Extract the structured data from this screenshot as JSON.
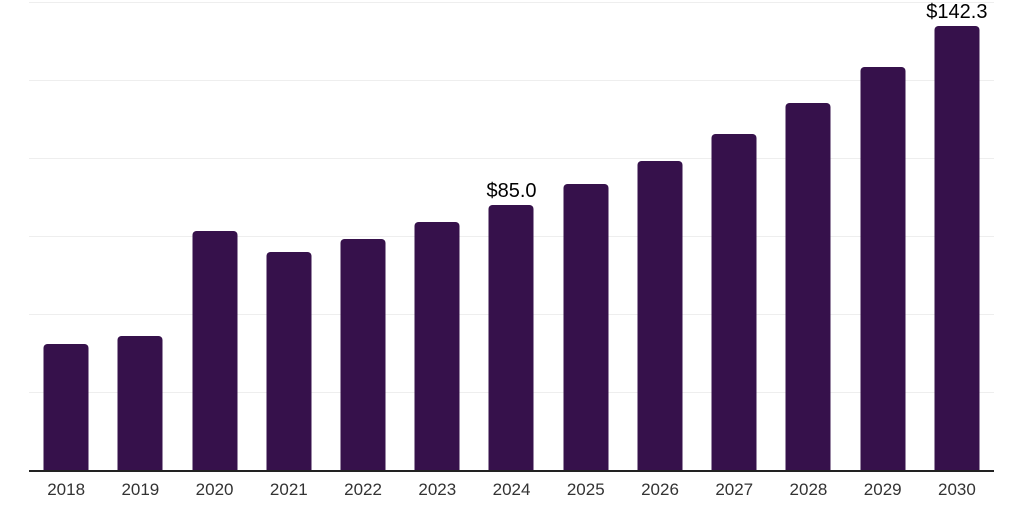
{
  "chart_data": {
    "type": "bar",
    "title": "",
    "xlabel": "",
    "ylabel": "",
    "categories": [
      "2018",
      "2019",
      "2020",
      "2021",
      "2022",
      "2023",
      "2024",
      "2025",
      "2026",
      "2027",
      "2028",
      "2029",
      "2030"
    ],
    "values": [
      40.4,
      42.9,
      76.6,
      69.9,
      74.0,
      79.5,
      85.0,
      91.7,
      99.0,
      107.7,
      117.6,
      129.2,
      142.3
    ],
    "data_labels": {
      "6": "$85.0",
      "12": "$142.3"
    },
    "value_prefix": "$",
    "ylim": [
      0,
      150
    ],
    "grid_step": 25,
    "grid": true,
    "legend": false
  },
  "colors": {
    "bar": "#36114B",
    "grid": "#eeeeee",
    "axis": "#222222",
    "x_tick_label": "#333333",
    "value_label": "#000000",
    "background": "#ffffff"
  }
}
